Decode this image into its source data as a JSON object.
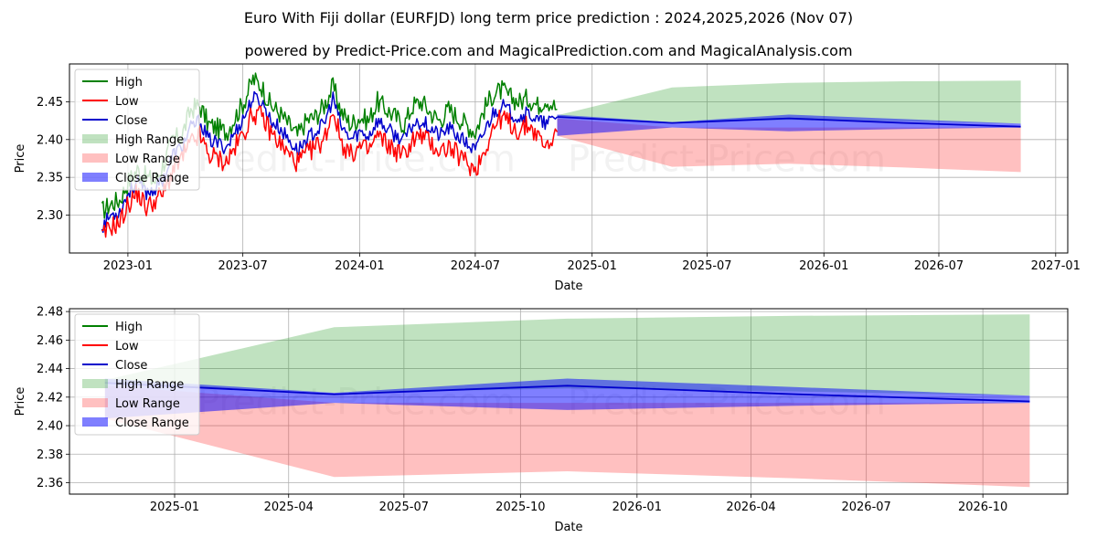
{
  "page": {
    "title": "Euro With Fiji dollar (EURFJD) long term price prediction : 2024,2025,2026 (Nov 07)",
    "subtitle": "powered by Predict-Price.com and MagicalPrediction.com and MagicalAnalysis.com",
    "watermark": "Predict-Price.com"
  },
  "legend": [
    {
      "label": "High",
      "kind": "line",
      "color": "#008000"
    },
    {
      "label": "Low",
      "kind": "line",
      "color": "#ff0000"
    },
    {
      "label": "Close",
      "kind": "line",
      "color": "#0000cc"
    },
    {
      "label": "High Range",
      "kind": "patch",
      "color": "#2e9e2e"
    },
    {
      "label": "Low Range",
      "kind": "patch",
      "color": "#ff3030"
    },
    {
      "label": "Close Range",
      "kind": "patch",
      "color": "#0000ff"
    }
  ],
  "chart_data": [
    {
      "type": "line",
      "id": "top",
      "xlabel": "Date",
      "ylabel": "Price",
      "xlim": [
        "2022-10-01",
        "2027-01-20"
      ],
      "ylim": [
        2.25,
        2.5
      ],
      "x_ticks": [
        {
          "date": "2023-01-01",
          "label": "2023-01"
        },
        {
          "date": "2023-07-01",
          "label": "2023-07"
        },
        {
          "date": "2024-01-01",
          "label": "2024-01"
        },
        {
          "date": "2024-07-01",
          "label": "2024-07"
        },
        {
          "date": "2025-01-01",
          "label": "2025-01"
        },
        {
          "date": "2025-07-01",
          "label": "2025-07"
        },
        {
          "date": "2026-01-01",
          "label": "2026-01"
        },
        {
          "date": "2026-07-01",
          "label": "2026-07"
        },
        {
          "date": "2027-01-01",
          "label": "2027-01"
        }
      ],
      "y_ticks": [
        {
          "value": 2.3,
          "label": "2.30"
        },
        {
          "value": 2.35,
          "label": "2.35"
        },
        {
          "value": 2.4,
          "label": "2.40"
        },
        {
          "value": 2.45,
          "label": "2.45"
        }
      ],
      "grid": true,
      "legend_position": "upper-left",
      "history": {
        "dates": [
          "2022-11-21",
          "2022-12-05",
          "2022-12-19",
          "2023-01-02",
          "2023-01-16",
          "2023-01-30",
          "2023-02-13",
          "2023-02-27",
          "2023-03-13",
          "2023-03-27",
          "2023-04-10",
          "2023-04-24",
          "2023-05-08",
          "2023-05-22",
          "2023-06-05",
          "2023-06-19",
          "2023-07-03",
          "2023-07-17",
          "2023-07-31",
          "2023-08-14",
          "2023-08-28",
          "2023-09-11",
          "2023-09-25",
          "2023-10-09",
          "2023-10-23",
          "2023-11-06",
          "2023-11-20",
          "2023-12-04",
          "2023-12-18",
          "2024-01-01",
          "2024-01-15",
          "2024-01-29",
          "2024-02-12",
          "2024-02-26",
          "2024-03-11",
          "2024-03-25",
          "2024-04-08",
          "2024-04-22",
          "2024-05-06",
          "2024-05-20",
          "2024-06-03",
          "2024-06-17",
          "2024-07-01",
          "2024-07-15",
          "2024-07-29",
          "2024-08-12",
          "2024-08-26",
          "2024-09-09",
          "2024-09-23",
          "2024-10-07",
          "2024-10-21",
          "2024-11-07"
        ],
        "high": [
          2.305,
          2.315,
          2.32,
          2.345,
          2.36,
          2.35,
          2.345,
          2.37,
          2.4,
          2.405,
          2.44,
          2.445,
          2.42,
          2.415,
          2.41,
          2.43,
          2.45,
          2.48,
          2.47,
          2.445,
          2.435,
          2.42,
          2.405,
          2.425,
          2.43,
          2.445,
          2.47,
          2.435,
          2.42,
          2.43,
          2.425,
          2.45,
          2.44,
          2.43,
          2.42,
          2.445,
          2.45,
          2.435,
          2.425,
          2.44,
          2.43,
          2.42,
          2.41,
          2.44,
          2.46,
          2.465,
          2.455,
          2.45,
          2.455,
          2.445,
          2.455,
          2.44
        ],
        "low": [
          2.27,
          2.285,
          2.29,
          2.315,
          2.33,
          2.31,
          2.32,
          2.33,
          2.36,
          2.375,
          2.395,
          2.405,
          2.38,
          2.375,
          2.37,
          2.39,
          2.41,
          2.435,
          2.43,
          2.41,
          2.395,
          2.38,
          2.37,
          2.38,
          2.39,
          2.4,
          2.44,
          2.395,
          2.38,
          2.39,
          2.385,
          2.405,
          2.395,
          2.385,
          2.38,
          2.4,
          2.405,
          2.395,
          2.385,
          2.39,
          2.38,
          2.37,
          2.36,
          2.385,
          2.415,
          2.43,
          2.42,
          2.41,
          2.42,
          2.405,
          2.39,
          2.41
        ],
        "close": [
          2.285,
          2.3,
          2.305,
          2.33,
          2.345,
          2.33,
          2.335,
          2.35,
          2.38,
          2.39,
          2.415,
          2.425,
          2.4,
          2.395,
          2.39,
          2.41,
          2.43,
          2.455,
          2.45,
          2.425,
          2.415,
          2.4,
          2.385,
          2.4,
          2.41,
          2.42,
          2.455,
          2.415,
          2.4,
          2.41,
          2.405,
          2.425,
          2.415,
          2.405,
          2.4,
          2.42,
          2.425,
          2.415,
          2.405,
          2.415,
          2.405,
          2.395,
          2.385,
          2.41,
          2.435,
          2.445,
          2.435,
          2.43,
          2.435,
          2.425,
          2.42,
          2.43
        ]
      },
      "forecast": {
        "dates": [
          "2024-11-07",
          "2025-05-07",
          "2025-11-07",
          "2026-05-07",
          "2026-11-07"
        ],
        "close": [
          2.43,
          2.422,
          2.428,
          2.422,
          2.417
        ],
        "close_range_low": [
          2.405,
          2.416,
          2.411,
          2.414,
          2.416
        ],
        "close_range_high": [
          2.433,
          2.423,
          2.433,
          2.427,
          2.421
        ],
        "high_range_low": [
          2.43,
          2.423,
          2.426,
          2.424,
          2.421
        ],
        "high_range_high": [
          2.432,
          2.469,
          2.475,
          2.477,
          2.478
        ],
        "low_range_low": [
          2.405,
          2.364,
          2.368,
          2.363,
          2.357
        ],
        "low_range_high": [
          2.428,
          2.416,
          2.416,
          2.416,
          2.416
        ]
      }
    },
    {
      "type": "line",
      "id": "bottom",
      "xlabel": "Date",
      "ylabel": "Price",
      "xlim": [
        "2024-10-10",
        "2026-12-07"
      ],
      "ylim": [
        2.352,
        2.482
      ],
      "x_ticks": [
        {
          "date": "2025-01-01",
          "label": "2025-01"
        },
        {
          "date": "2025-04-01",
          "label": "2025-04"
        },
        {
          "date": "2025-07-01",
          "label": "2025-07"
        },
        {
          "date": "2025-10-01",
          "label": "2025-10"
        },
        {
          "date": "2026-01-01",
          "label": "2026-01"
        },
        {
          "date": "2026-04-01",
          "label": "2026-04"
        },
        {
          "date": "2026-07-01",
          "label": "2026-07"
        },
        {
          "date": "2026-10-01",
          "label": "2026-10"
        }
      ],
      "y_ticks": [
        {
          "value": 2.36,
          "label": "2.36"
        },
        {
          "value": 2.38,
          "label": "2.38"
        },
        {
          "value": 2.4,
          "label": "2.40"
        },
        {
          "value": 2.42,
          "label": "2.42"
        },
        {
          "value": 2.44,
          "label": "2.44"
        },
        {
          "value": 2.46,
          "label": "2.46"
        },
        {
          "value": 2.48,
          "label": "2.48"
        }
      ],
      "grid": true,
      "legend_position": "upper-left",
      "forecast": {
        "dates": [
          "2024-11-07",
          "2025-05-07",
          "2025-11-07",
          "2026-05-07",
          "2026-11-07"
        ],
        "close": [
          2.43,
          2.422,
          2.428,
          2.422,
          2.417
        ],
        "close_range_low": [
          2.405,
          2.416,
          2.411,
          2.414,
          2.416
        ],
        "close_range_high": [
          2.433,
          2.423,
          2.433,
          2.427,
          2.421
        ],
        "high_range_low": [
          2.43,
          2.423,
          2.426,
          2.424,
          2.421
        ],
        "high_range_high": [
          2.432,
          2.469,
          2.475,
          2.477,
          2.478
        ],
        "low_range_low": [
          2.405,
          2.364,
          2.368,
          2.363,
          2.357
        ],
        "low_range_high": [
          2.428,
          2.416,
          2.416,
          2.416,
          2.416
        ]
      }
    }
  ]
}
